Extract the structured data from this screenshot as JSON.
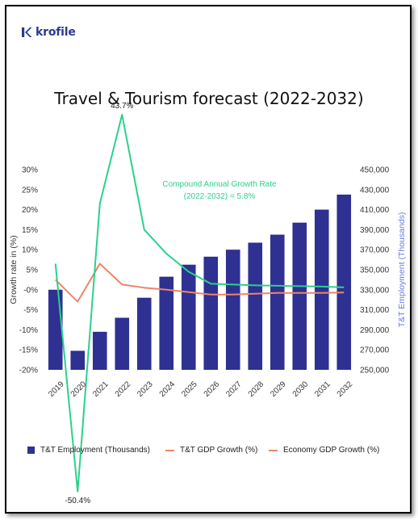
{
  "brand": {
    "name": "krofile",
    "color": "#2b3990"
  },
  "title": "Travel & Tourism forecast (2022-2032)",
  "legend": {
    "employment": "T&T Employment (Thousands)",
    "tt_gdp": "T&T GDP Growth (%)",
    "economy_gdp": "Economy GDP Growth (%)"
  },
  "chart_data": {
    "type": "bar",
    "title": "Travel & Tourism forecast (2022-2032)",
    "categories": [
      "2019",
      "2020",
      "2021",
      "2022",
      "2023",
      "2024",
      "2025",
      "2026",
      "2027",
      "2028",
      "2029",
      "2030",
      "2031",
      "2032"
    ],
    "left_axis": {
      "label": "Growth rate in (%)",
      "range": [
        -20,
        30
      ],
      "ticks": [
        "30%",
        "25%",
        "20%",
        "15%",
        "10%",
        "5%",
        "-0%",
        "-5%",
        "-10%",
        "-15%",
        "-20%"
      ]
    },
    "right_axis": {
      "label": "T&T Employment (Thousands)",
      "range": [
        250000,
        450000
      ],
      "ticks": [
        "450,000",
        "430,000",
        "410,000",
        "390,000",
        "370,000",
        "350,000",
        "330,000",
        "310,000",
        "290,000",
        "270,000",
        "250,000"
      ]
    },
    "series": [
      {
        "name": "T&T Employment (Thousands)",
        "type": "bar",
        "axis": "right",
        "color": "#2e3192",
        "values": [
          330000,
          269000,
          288000,
          302000,
          322000,
          343000,
          355000,
          363000,
          370000,
          377000,
          385000,
          397000,
          410000,
          425000
        ]
      },
      {
        "name": "T&T GDP Growth (%)",
        "type": "line",
        "axis": "left",
        "color": "#2bd18d",
        "values": [
          6.5,
          -50.4,
          21.5,
          43.7,
          15.0,
          9.0,
          4.5,
          1.5,
          1.3,
          1.1,
          1.0,
          0.9,
          0.8,
          0.6
        ]
      },
      {
        "name": "Economy GDP Growth (%)",
        "type": "line",
        "axis": "left",
        "color": "#f08468",
        "values": [
          2.5,
          -3.0,
          6.5,
          1.3,
          0.5,
          0.0,
          -0.6,
          -1.2,
          -1.2,
          -1.0,
          -0.8,
          -0.8,
          -0.8,
          -0.7
        ]
      }
    ],
    "annotations": [
      {
        "text": "43.7%",
        "category": "2022",
        "series": "T&T GDP Growth (%)"
      },
      {
        "text": "-50.4%",
        "category": "2020",
        "series": "T&T GDP Growth (%)"
      },
      {
        "text": "Compound Annual Growth Rate",
        "color": "#2bd18d"
      },
      {
        "text": "(2022-2032) = 5.8%",
        "color": "#2bd18d"
      }
    ],
    "grid": false,
    "legend_position": "bottom"
  }
}
